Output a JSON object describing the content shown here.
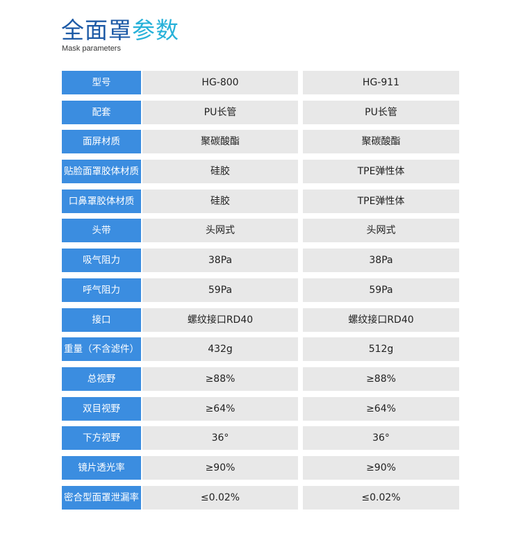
{
  "header": {
    "title_part1": "全面罩",
    "title_part2": "参数",
    "subtitle": "Mask parameters"
  },
  "colors": {
    "title_dark": "#1d5aa6",
    "title_light": "#27b1d9",
    "label_bg": "#3b8de0",
    "cell_bg": "#e8e8e8"
  },
  "rows": [
    {
      "label": "型号",
      "v1": "HG-800",
      "v2": "HG-911"
    },
    {
      "label": "配套",
      "v1": "PU长管",
      "v2": "PU长管"
    },
    {
      "label": "面屏材质",
      "v1": "聚碳酸酯",
      "v2": "聚碳酸酯"
    },
    {
      "label": "贴脸面罩胶体材质",
      "v1": "硅胶",
      "v2": "TPE弹性体"
    },
    {
      "label": "口鼻罩胶体材质",
      "v1": "硅胶",
      "v2": "TPE弹性体"
    },
    {
      "label": "头带",
      "v1": "头网式",
      "v2": "头网式"
    },
    {
      "label": "吸气阻力",
      "v1": "38Pa",
      "v2": "38Pa"
    },
    {
      "label": "呼气阻力",
      "v1": "59Pa",
      "v2": "59Pa"
    },
    {
      "label": "接口",
      "v1": "螺纹接口RD40",
      "v2": "螺纹接口RD40"
    },
    {
      "label": "重量（不含滤件）",
      "v1": "432g",
      "v2": "512g"
    },
    {
      "label": "总视野",
      "v1": "≥88%",
      "v2": "≥88%"
    },
    {
      "label": "双目视野",
      "v1": "≥64%",
      "v2": "≥64%"
    },
    {
      "label": "下方视野",
      "v1": "36°",
      "v2": "36°"
    },
    {
      "label": "镜片透光率",
      "v1": "≥90%",
      "v2": "≥90%"
    },
    {
      "label": "密合型面罩泄漏率",
      "v1": "≤0.02%",
      "v2": "≤0.02%"
    }
  ]
}
